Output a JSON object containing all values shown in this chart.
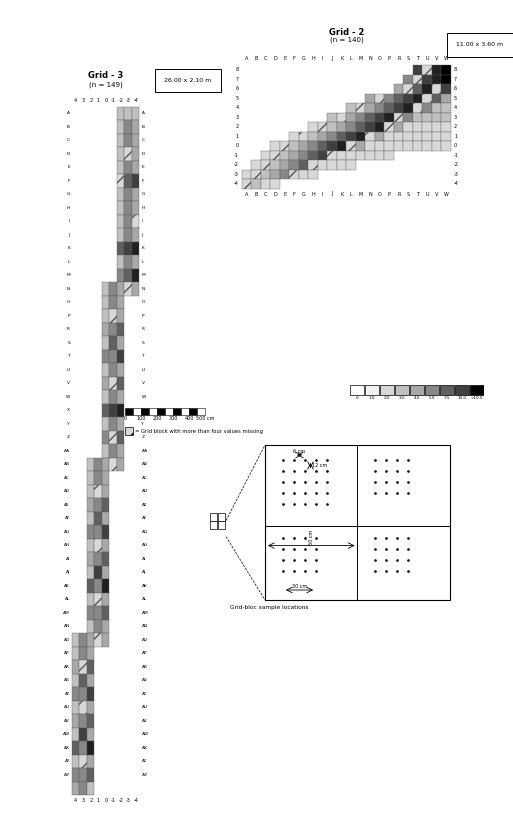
{
  "title_grid3": "Grid - 3",
  "subtitle_grid3": "(n = 149)",
  "title_grid2": "Grid - 2",
  "subtitle_grid2": "(n = 140)",
  "size_grid3": "26.00 x 2.10 m",
  "size_grid2": "11.00 x 3.60 m",
  "col_labels3": [
    "A",
    "B",
    "C",
    "D",
    "E",
    "F",
    "G",
    "H",
    "I",
    "J",
    "K",
    "L",
    "M",
    "N",
    "O",
    "P",
    "R",
    "S",
    "T",
    "U",
    "V",
    "W",
    "X",
    "Y",
    "Z",
    "AA",
    "AB",
    "AC",
    "AD",
    "AE",
    "AF",
    "AG",
    "AH",
    "AI",
    "AJ",
    "AK",
    "AL",
    "AM",
    "AN",
    "AO",
    "AP",
    "AR",
    "AS",
    "AT",
    "AU",
    "AV",
    "AW",
    "AX",
    "AY",
    "AZ"
  ],
  "row_labels3": [
    "4",
    "3",
    "2",
    "1",
    "0",
    "-1",
    "-2",
    "-3",
    "-4"
  ],
  "col_labels2": [
    "A",
    "B",
    "C",
    "D",
    "E",
    "F",
    "G",
    "H",
    "I",
    "J",
    "K",
    "L",
    "M",
    "N",
    "O",
    "P",
    "R",
    "S",
    "T",
    "U",
    "V",
    "W"
  ],
  "row_labels2": [
    "8",
    "7",
    "6",
    "5",
    "4",
    "3",
    "2",
    "1",
    "0",
    "-1",
    "-2",
    "-3",
    "-4"
  ],
  "legend_labels": [
    "0",
    "1.0",
    "2.0",
    "3.0",
    "4.0",
    "5.0",
    "7.5",
    "10.0",
    ">10.0"
  ],
  "scale_ticks": [
    "0",
    "100",
    "200",
    "300",
    "400",
    "500 cm"
  ],
  "missing_label": "= Grid block with more than four values missing",
  "gridboc_label": "Grid-bloc sample locations"
}
